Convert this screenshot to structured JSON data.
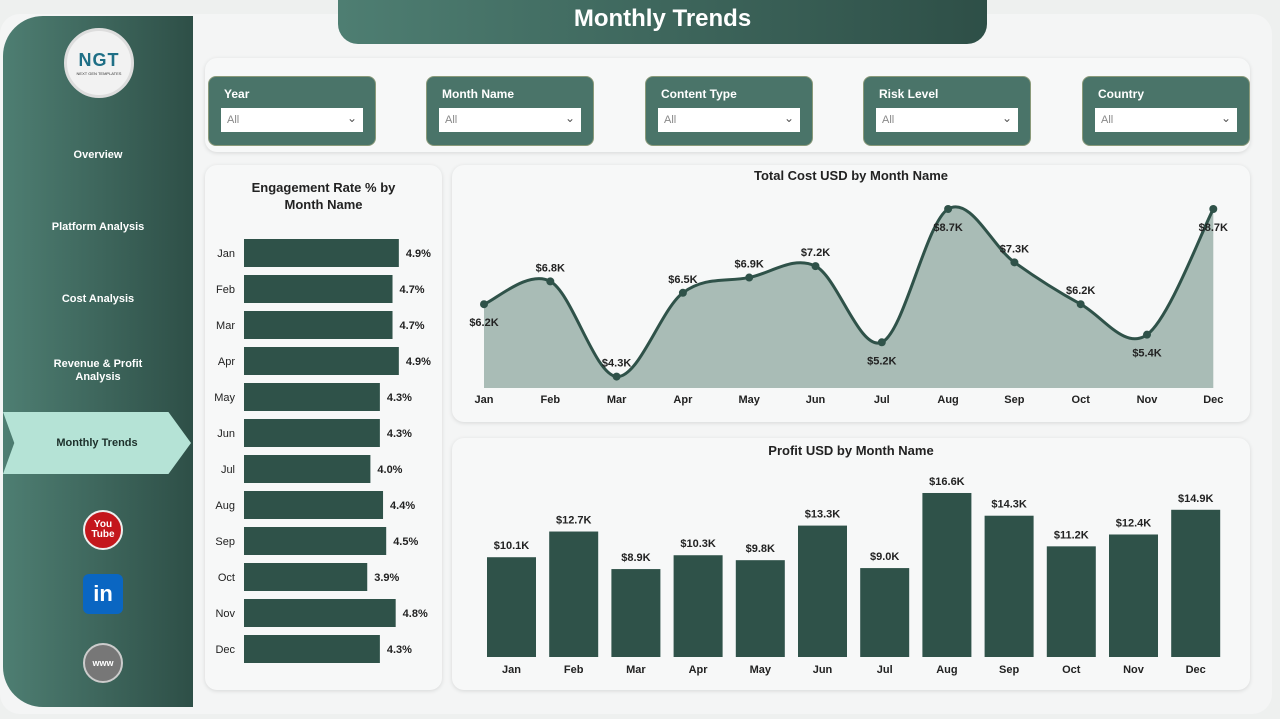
{
  "title": "Monthly Trends",
  "logo": {
    "text": "NGT",
    "subtitle": "NEXT GEN TEMPLATES"
  },
  "nav": [
    {
      "label": "Overview"
    },
    {
      "label": "Platform Analysis"
    },
    {
      "label": "Cost Analysis"
    },
    {
      "label": "Revenue & Profit Analysis"
    },
    {
      "label": "Monthly Trends",
      "active": true
    }
  ],
  "social": [
    {
      "icon": "youtube-icon",
      "label": "You Tube",
      "color": "#c4161c"
    },
    {
      "icon": "linkedin-icon",
      "label": "in",
      "color": "#0a66c2"
    },
    {
      "icon": "globe-icon",
      "label": "www",
      "color": "#666666"
    }
  ],
  "filters": [
    {
      "label": "Year",
      "value": "All"
    },
    {
      "label": "Month Name",
      "value": "All"
    },
    {
      "label": "Content Type",
      "value": "All"
    },
    {
      "label": "Risk Level",
      "value": "All"
    },
    {
      "label": "Country",
      "value": "All"
    }
  ],
  "colors": {
    "accent": "#2f5249",
    "area": "#a9bcb6",
    "header": "#4a7469"
  },
  "chart_data": [
    {
      "type": "bar",
      "orientation": "horizontal",
      "title": "Engagement Rate % by Month Name",
      "categories": [
        "Jan",
        "Feb",
        "Mar",
        "Apr",
        "May",
        "Jun",
        "Jul",
        "Aug",
        "Sep",
        "Oct",
        "Nov",
        "Dec"
      ],
      "values": [
        4.9,
        4.7,
        4.7,
        4.9,
        4.3,
        4.3,
        4.0,
        4.4,
        4.5,
        3.9,
        4.8,
        4.3
      ],
      "labels": [
        "4.9%",
        "4.7%",
        "4.7%",
        "4.9%",
        "4.3%",
        "4.3%",
        "4.0%",
        "4.4%",
        "4.5%",
        "3.9%",
        "4.8%",
        "4.3%"
      ]
    },
    {
      "type": "area",
      "title": "Total Cost USD by Month Name",
      "categories": [
        "Jan",
        "Feb",
        "Mar",
        "Apr",
        "May",
        "Jun",
        "Jul",
        "Aug",
        "Sep",
        "Oct",
        "Nov",
        "Dec"
      ],
      "values": [
        6.2,
        6.8,
        4.3,
        6.5,
        6.9,
        7.2,
        5.2,
        8.7,
        7.3,
        6.2,
        5.4,
        8.7
      ],
      "labels": [
        "$6.2K",
        "$6.8K",
        "$4.3K",
        "$6.5K",
        "$6.9K",
        "$7.2K",
        "$5.2K",
        "$8.7K",
        "$7.3K",
        "$6.2K",
        "$5.4K",
        "$8.7K"
      ],
      "unit": "K USD",
      "ylim": [
        4.0,
        8.7
      ]
    },
    {
      "type": "bar",
      "title": "Profit USD by Month Name",
      "categories": [
        "Jan",
        "Feb",
        "Mar",
        "Apr",
        "May",
        "Jun",
        "Jul",
        "Aug",
        "Sep",
        "Oct",
        "Nov",
        "Dec"
      ],
      "values": [
        10.1,
        12.7,
        8.9,
        10.3,
        9.8,
        13.3,
        9.0,
        16.6,
        14.3,
        11.2,
        12.4,
        14.9
      ],
      "labels": [
        "$10.1K",
        "$12.7K",
        "$8.9K",
        "$10.3K",
        "$9.8K",
        "$13.3K",
        "$9.0K",
        "$16.6K",
        "$14.3K",
        "$11.2K",
        "$12.4K",
        "$14.9K"
      ],
      "unit": "K USD",
      "ylim": [
        0,
        16.6
      ]
    }
  ]
}
